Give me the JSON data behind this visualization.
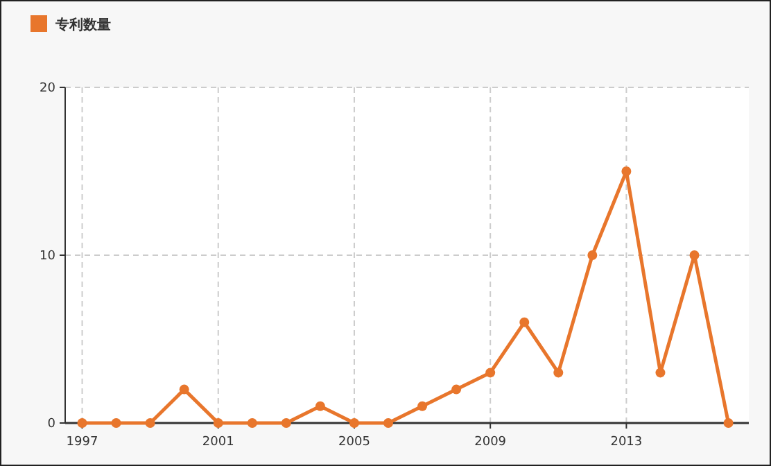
{
  "chart_data": {
    "type": "line",
    "x": [
      1997,
      1998,
      1999,
      2000,
      2001,
      2002,
      2003,
      2004,
      2005,
      2006,
      2007,
      2008,
      2009,
      2010,
      2011,
      2012,
      2013,
      2014,
      2015,
      2016
    ],
    "series": [
      {
        "name": "专利数量",
        "color": "#e8762c",
        "values": [
          0,
          0,
          0,
          2,
          0,
          0,
          0,
          1,
          0,
          0,
          1,
          2,
          3,
          6,
          3,
          10,
          15,
          3,
          10,
          0
        ]
      }
    ],
    "xlim": [
      1996.5,
      2016.6
    ],
    "xticks": [
      1997,
      2001,
      2005,
      2009,
      2013
    ],
    "ylim": [
      0,
      20
    ],
    "yticks": [
      0,
      10,
      20
    ],
    "grid": true,
    "legend": "top left",
    "marker": "circle",
    "line_style": "solid"
  }
}
